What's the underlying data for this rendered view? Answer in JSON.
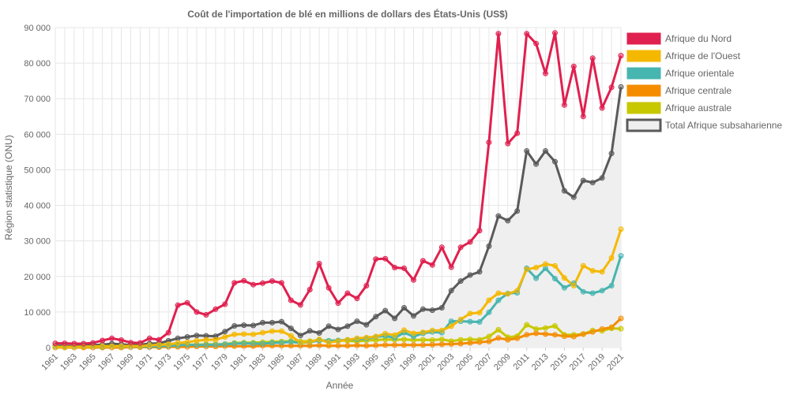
{
  "chart_data": {
    "type": "line",
    "title": "Coût de l'importation de blé en millions de dollars des États-Unis (US$)",
    "xlabel": "Année",
    "ylabel": "Région statistique (ONU)",
    "ylim": [
      0,
      90000
    ],
    "yticks": [
      0,
      10000,
      20000,
      30000,
      40000,
      50000,
      60000,
      70000,
      80000,
      90000
    ],
    "ytick_labels": [
      "0",
      "10 000",
      "20 000",
      "30 000",
      "40 000",
      "50 000",
      "60 000",
      "70 000",
      "80 000",
      "90 000"
    ],
    "xlim": [
      1961,
      2021
    ],
    "xticks": [
      1961,
      1963,
      1965,
      1967,
      1969,
      1971,
      1973,
      1975,
      1977,
      1979,
      1981,
      1983,
      1985,
      1987,
      1989,
      1991,
      1993,
      1995,
      1997,
      1999,
      2001,
      2003,
      2005,
      2007,
      2009,
      2011,
      2013,
      2015,
      2017,
      2019,
      2021
    ],
    "grid": true,
    "legend_position": "right",
    "series": [
      {
        "name": "Afrique du Nord",
        "color": "#e0204f",
        "fill": false,
        "values": [
          1200,
          1200,
          1100,
          1100,
          1300,
          2000,
          2600,
          2100,
          1400,
          1300,
          2600,
          2200,
          4200,
          11900,
          12600,
          10000,
          9200,
          10800,
          12200,
          18200,
          18800,
          17700,
          18100,
          18700,
          18200,
          13300,
          12000,
          16300,
          23600,
          16800,
          12500,
          15300,
          13800,
          17400,
          24900,
          25000,
          22500,
          22300,
          19000,
          24400,
          23200,
          28200,
          22600,
          28200,
          29700,
          32900,
          57700,
          88300,
          57400,
          60300,
          88300,
          85500,
          77100,
          88500,
          68200,
          79100,
          65000,
          81400,
          67400,
          73200,
          82100
        ]
      },
      {
        "name": "Afrique de l'Ouest",
        "color": "#f5b800",
        "fill": false,
        "values": [
          100,
          100,
          100,
          200,
          200,
          300,
          300,
          400,
          400,
          400,
          600,
          800,
          900,
          1300,
          1500,
          1900,
          2200,
          2200,
          3000,
          3700,
          3800,
          3700,
          4200,
          4600,
          4600,
          3300,
          1400,
          1600,
          2300,
          1400,
          1800,
          2200,
          2600,
          2800,
          3100,
          3900,
          3500,
          4900,
          4000,
          4300,
          4800,
          4800,
          6000,
          7900,
          9600,
          9800,
          13300,
          15300,
          15100,
          16000,
          22000,
          22500,
          23500,
          23000,
          19600,
          17400,
          23000,
          21600,
          21300,
          25200,
          33300
        ]
      },
      {
        "name": "Afrique orientale",
        "color": "#47b5b0",
        "fill": false,
        "values": [
          100,
          100,
          100,
          200,
          200,
          200,
          300,
          300,
          300,
          300,
          300,
          400,
          500,
          600,
          800,
          700,
          700,
          800,
          900,
          1100,
          1200,
          1100,
          1100,
          1300,
          1400,
          1600,
          1300,
          1500,
          2000,
          1900,
          2000,
          2200,
          2300,
          2500,
          3000,
          3300,
          2700,
          4200,
          3100,
          4000,
          4400,
          4200,
          7400,
          7400,
          7300,
          7200,
          9900,
          13300,
          15200,
          15400,
          22300,
          19500,
          22300,
          19400,
          16800,
          18100,
          15700,
          15300,
          16000,
          17400,
          25800
        ]
      },
      {
        "name": "Afrique centrale",
        "color": "#f58c00",
        "fill": false,
        "values": [
          0,
          0,
          0,
          0,
          0,
          0,
          0,
          0,
          100,
          100,
          100,
          100,
          200,
          200,
          200,
          300,
          300,
          300,
          400,
          400,
          400,
          400,
          500,
          500,
          500,
          500,
          500,
          500,
          600,
          500,
          500,
          500,
          600,
          500,
          600,
          700,
          700,
          700,
          700,
          700,
          800,
          900,
          1000,
          1100,
          1300,
          1500,
          1700,
          2700,
          2200,
          2600,
          3600,
          4000,
          3800,
          3600,
          3200,
          3100,
          3800,
          4400,
          5200,
          5700,
          8200
        ]
      },
      {
        "name": "Afrique australe",
        "color": "#c8c800",
        "fill": false,
        "values": [
          200,
          200,
          200,
          300,
          300,
          400,
          400,
          400,
          400,
          400,
          500,
          600,
          700,
          800,
          800,
          800,
          900,
          900,
          1000,
          1300,
          1400,
          1400,
          1500,
          1600,
          1700,
          1800,
          1700,
          1800,
          2100,
          1900,
          2000,
          1900,
          1700,
          2000,
          2100,
          2300,
          2200,
          2300,
          2100,
          2200,
          2100,
          2300,
          1800,
          2200,
          2300,
          2200,
          3100,
          5000,
          2900,
          3200,
          6400,
          5200,
          5500,
          6100,
          3600,
          3600,
          3800,
          4800,
          4700,
          5400,
          5300
        ]
      },
      {
        "name": "Total Afrique subsaharienne",
        "color": "#5a5a5a",
        "fill": true,
        "fill_color": "#efefef",
        "values": [
          500,
          500,
          400,
          600,
          700,
          800,
          1100,
          900,
          700,
          800,
          1100,
          1200,
          1900,
          2600,
          3000,
          3400,
          3300,
          3200,
          4500,
          6100,
          6300,
          6200,
          7000,
          7000,
          7300,
          5400,
          3400,
          4700,
          4100,
          6000,
          5100,
          6000,
          7400,
          6400,
          8700,
          10400,
          8200,
          11200,
          8900,
          10800,
          10500,
          11200,
          16000,
          18700,
          20400,
          21300,
          28500,
          37000,
          35700,
          38400,
          55300,
          51600,
          55300,
          52300,
          44100,
          42300,
          47000,
          46400,
          47700,
          54600,
          73300
        ]
      }
    ]
  }
}
